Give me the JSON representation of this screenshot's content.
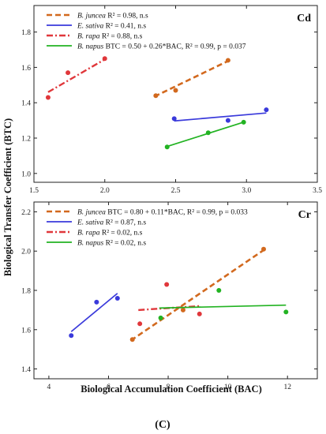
{
  "figure": {
    "y_axis_label": "Biological Transfer Coefficient (BTC)",
    "x_axis_label": "Biological Accumulation Coefficient (BAC)",
    "caption": "(C)"
  },
  "chart_data": [
    {
      "type": "scatter",
      "panel_label": "Cd",
      "xlim": [
        1.5,
        3.5
      ],
      "ylim": [
        0.95,
        1.95
      ],
      "x_ticks": [
        "1.5",
        "2.0",
        "2.5",
        "3.0",
        "3.5"
      ],
      "x_tick_values": [
        1.5,
        2.0,
        2.5,
        3.0,
        3.5
      ],
      "y_ticks": [
        "1.0",
        "1.2",
        "1.4",
        "1.6",
        "1.8"
      ],
      "y_tick_values": [
        1.0,
        1.2,
        1.4,
        1.6,
        1.8
      ],
      "legend_position": "top",
      "series": [
        {
          "name": "B. juncea",
          "stat": "R² = 0.98, n.s",
          "color": "#d2691e",
          "line_style": "dashed",
          "points": [
            [
              2.36,
              1.44
            ],
            [
              2.5,
              1.47
            ],
            [
              2.87,
              1.64
            ]
          ],
          "fit": [
            [
              2.35,
              1.435
            ],
            [
              2.88,
              1.64
            ]
          ]
        },
        {
          "name": "E. sativa",
          "stat": "R² = 0.41, n.s",
          "color": "#3a3adb",
          "line_style": "solid",
          "points": [
            [
              2.49,
              1.31
            ],
            [
              2.87,
              1.3
            ],
            [
              3.14,
              1.36
            ]
          ],
          "fit": [
            [
              2.49,
              1.297
            ],
            [
              3.14,
              1.342
            ]
          ]
        },
        {
          "name": "B. rapa",
          "stat": "R² = 0.88, n.s",
          "color": "#e0373b",
          "line_style": "dashdot",
          "points": [
            [
              1.6,
              1.43
            ],
            [
              1.74,
              1.57
            ],
            [
              2.0,
              1.65
            ]
          ],
          "fit": [
            [
              1.6,
              1.46
            ],
            [
              2.01,
              1.65
            ]
          ]
        },
        {
          "name": "B. napus",
          "stat": "BTC = 0.50 + 0.26*BAC, R² = 0.99, p = 0.037",
          "color": "#22b322",
          "line_style": "solid",
          "points": [
            [
              2.44,
              1.15
            ],
            [
              2.73,
              1.23
            ],
            [
              2.98,
              1.29
            ]
          ],
          "fit": [
            [
              2.43,
              1.15
            ],
            [
              2.98,
              1.29
            ]
          ]
        }
      ]
    },
    {
      "type": "scatter",
      "panel_label": "Cr",
      "xlim": [
        3.5,
        13
      ],
      "ylim": [
        1.35,
        2.25
      ],
      "x_ticks": [
        "4",
        "6",
        "8",
        "10",
        "12"
      ],
      "x_tick_values": [
        4,
        6,
        8,
        10,
        12
      ],
      "y_ticks": [
        "1.4",
        "1.6",
        "1.8",
        "2.0",
        "2.2"
      ],
      "y_tick_values": [
        1.4,
        1.6,
        1.8,
        2.0,
        2.2
      ],
      "legend_position": "top",
      "series": [
        {
          "name": "B. juncea",
          "stat": "BTC = 0.80 + 0.11*BAC, R² = 0.99, p = 0.033",
          "color": "#d2691e",
          "line_style": "dashed",
          "points": [
            [
              6.8,
              1.55
            ],
            [
              8.5,
              1.7
            ],
            [
              11.2,
              2.01
            ]
          ],
          "fit": [
            [
              6.75,
              1.545
            ],
            [
              11.2,
              2.005
            ]
          ]
        },
        {
          "name": "E. sativa",
          "stat": "R² = 0.87, n.s",
          "color": "#3a3adb",
          "line_style": "solid",
          "points": [
            [
              4.75,
              1.57
            ],
            [
              5.6,
              1.74
            ],
            [
              6.3,
              1.76
            ]
          ],
          "fit": [
            [
              4.75,
              1.59
            ],
            [
              6.3,
              1.785
            ]
          ]
        },
        {
          "name": "B. rapa",
          "stat": "R² = 0.02, n.s",
          "color": "#e0373b",
          "line_style": "dashdot",
          "points": [
            [
              7.05,
              1.63
            ],
            [
              7.95,
              1.83
            ],
            [
              9.05,
              1.68
            ]
          ],
          "fit": [
            [
              7.0,
              1.7
            ],
            [
              9.05,
              1.72
            ]
          ]
        },
        {
          "name": "B. napus",
          "stat": "R² = 0.02, n.s",
          "color": "#22b322",
          "line_style": "solid",
          "points": [
            [
              7.75,
              1.66
            ],
            [
              9.7,
              1.8
            ],
            [
              11.95,
              1.69
            ]
          ],
          "fit": [
            [
              7.7,
              1.71
            ],
            [
              11.95,
              1.725
            ]
          ]
        }
      ]
    }
  ]
}
